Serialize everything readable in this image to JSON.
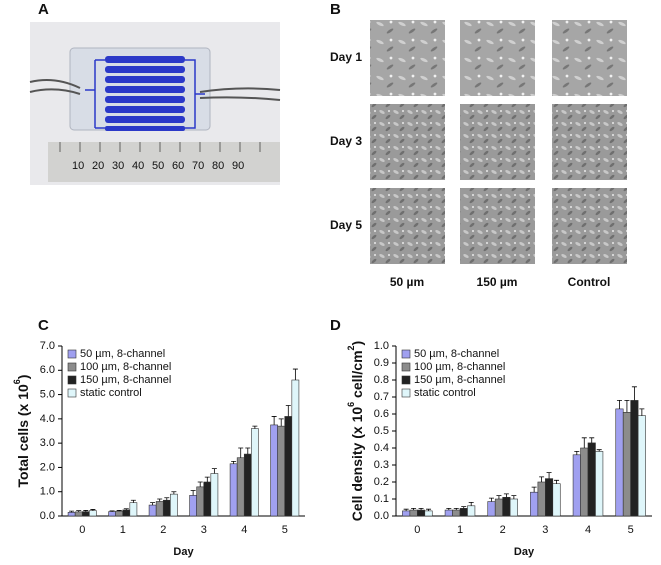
{
  "panel_labels": [
    "A",
    "B",
    "C",
    "D"
  ],
  "image_grid": {
    "rows": [
      "Day 1",
      "Day 3",
      "Day 5"
    ],
    "columns": [
      "50 µm",
      "150 µm",
      "Control"
    ]
  },
  "chart_data": [
    {
      "type": "bar",
      "ylabel": [
        "Total cells (x 10",
        "6",
        ")"
      ],
      "xlabel": "Day",
      "categories": [
        "0",
        "1",
        "2",
        "3",
        "4",
        "5"
      ],
      "ylim": [
        0,
        7
      ],
      "yticks": [
        {
          "value": 0,
          "label": "0.0"
        },
        {
          "value": 1,
          "label": "1.0"
        },
        {
          "value": 2,
          "label": "2.0"
        },
        {
          "value": 3,
          "label": "3.0"
        },
        {
          "value": 4,
          "label": "4.0"
        },
        {
          "value": 5,
          "label": "5.0"
        },
        {
          "value": 6,
          "label": "6.0"
        },
        {
          "value": 7,
          "label": "7.0"
        }
      ],
      "legend": "upper left",
      "series": [
        {
          "name": "50 µm, 8-channel",
          "color": "#a0a0f0",
          "values": [
            0.15,
            0.18,
            0.45,
            0.85,
            2.15,
            3.75
          ],
          "errors": [
            0.05,
            0.03,
            0.1,
            0.2,
            0.1,
            0.35
          ]
        },
        {
          "name": "100 µm, 8-channel",
          "color": "#8c8c8c",
          "values": [
            0.17,
            0.2,
            0.6,
            1.2,
            2.4,
            3.7
          ],
          "errors": [
            0.05,
            0.03,
            0.1,
            0.2,
            0.4,
            0.3
          ]
        },
        {
          "name": "150 µm, 8-channel",
          "color": "#222222",
          "values": [
            0.18,
            0.25,
            0.65,
            1.4,
            2.55,
            4.1
          ],
          "errors": [
            0.05,
            0.05,
            0.1,
            0.2,
            0.25,
            0.45
          ]
        },
        {
          "name": "static control",
          "color": "#dff6fa",
          "values": [
            0.22,
            0.55,
            0.9,
            1.75,
            3.6,
            5.6
          ],
          "errors": [
            0.05,
            0.1,
            0.1,
            0.2,
            0.1,
            0.45
          ]
        }
      ]
    },
    {
      "type": "bar",
      "ylabel": [
        "Cell density (x 10",
        "6",
        " cell/cm",
        "2",
        ")"
      ],
      "xlabel": "Day",
      "categories": [
        "0",
        "1",
        "2",
        "3",
        "4",
        "5"
      ],
      "ylim": [
        0,
        1
      ],
      "yticks": [
        {
          "value": 0,
          "label": "0.0"
        },
        0.1,
        0.2,
        0.3,
        0.4,
        0.5,
        0.6,
        0.7,
        0.8,
        0.9,
        {
          "value": 1,
          "label": "1.0"
        }
      ],
      "legend": "upper left",
      "series": [
        {
          "name": "50 µm, 8-channel",
          "color": "#a0a0f0",
          "values": [
            0.03,
            0.035,
            0.085,
            0.14,
            0.36,
            0.63
          ],
          "errors": [
            0.01,
            0.01,
            0.02,
            0.03,
            0.02,
            0.05
          ]
        },
        {
          "name": "100 µm, 8-channel",
          "color": "#8c8c8c",
          "values": [
            0.035,
            0.035,
            0.1,
            0.2,
            0.4,
            0.61
          ],
          "errors": [
            0.01,
            0.01,
            0.02,
            0.03,
            0.06,
            0.07
          ]
        },
        {
          "name": "150 µm, 8-channel",
          "color": "#222222",
          "values": [
            0.035,
            0.045,
            0.11,
            0.22,
            0.43,
            0.68
          ],
          "errors": [
            0.01,
            0.01,
            0.02,
            0.035,
            0.03,
            0.08
          ]
        },
        {
          "name": "static control",
          "color": "#dff6fa",
          "values": [
            0.03,
            0.06,
            0.1,
            0.19,
            0.38,
            0.59
          ],
          "errors": [
            0.01,
            0.02,
            0.02,
            0.02,
            0.01,
            0.04
          ]
        }
      ]
    }
  ]
}
